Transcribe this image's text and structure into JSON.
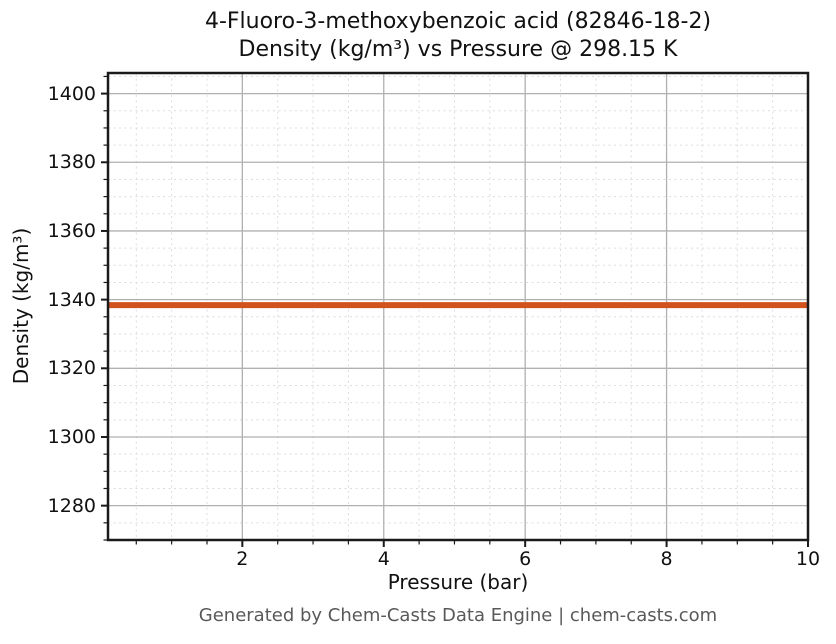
{
  "title": {
    "line1": "4-Fluoro-3-methoxybenzoic acid (82846-18-2)",
    "line2": "Density (kg/m³) vs Pressure @ 298.15 K"
  },
  "footer": {
    "text": "Generated by Chem-Casts Data Engine | chem-casts.com"
  },
  "chart_data": {
    "type": "line",
    "title": "4-Fluoro-3-methoxybenzoic acid (82846-18-2)\nDensity (kg/m³) vs Pressure @ 298.15 K",
    "xlabel": "Pressure (bar)",
    "ylabel": "Density (kg/m³)",
    "xlim": [
      0.1,
      10.0
    ],
    "ylim": [
      1270,
      1406
    ],
    "xticks": [
      2,
      4,
      6,
      8,
      10
    ],
    "yticks": [
      1280,
      1300,
      1320,
      1340,
      1360,
      1380,
      1400
    ],
    "x_minor_step": 0.5,
    "y_minor_step": 5,
    "grid": {
      "major": true,
      "minor": true,
      "major_color": "#b0b0b0",
      "minor_color": "#dcdcdc",
      "minor_dash": "2 3.5"
    },
    "axes_color": "#1a1a1a",
    "series": [
      {
        "name": "Density",
        "color": "#d2521e",
        "x": [
          0.1,
          10.0
        ],
        "y": [
          1338.4,
          1338.4
        ]
      }
    ],
    "line_width": 6,
    "legend": false
  }
}
